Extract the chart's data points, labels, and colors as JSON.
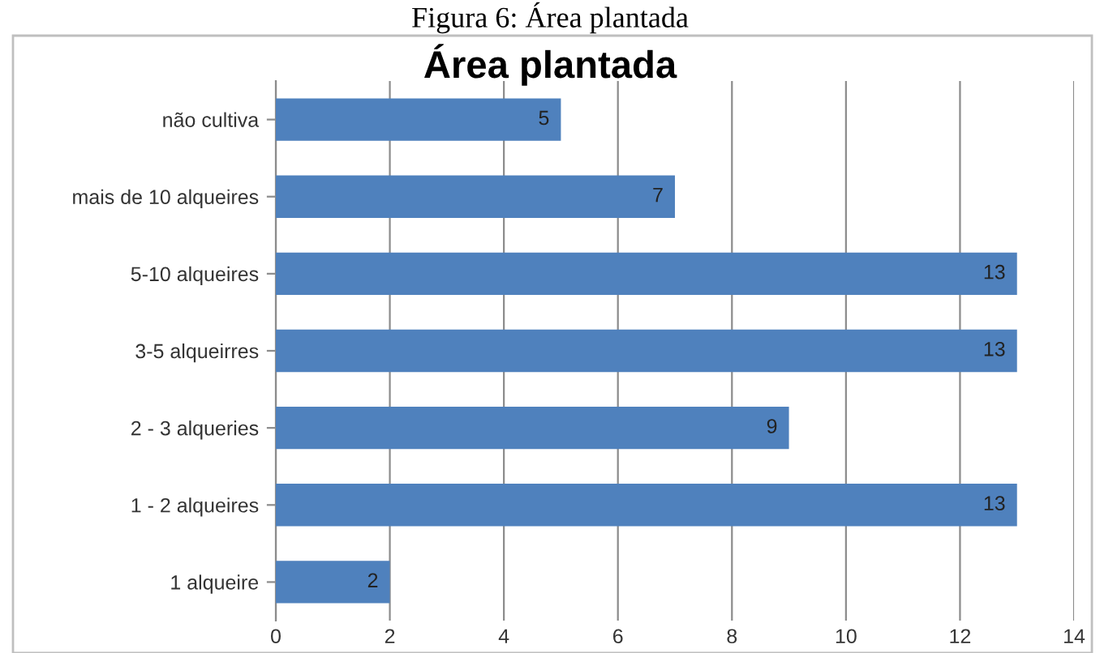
{
  "chart_data": {
    "type": "bar",
    "orientation": "horizontal",
    "title": "Área plantada",
    "annotations": [
      "Figura 6: Área plantada"
    ],
    "categories": [
      "não cultiva",
      "mais de 10 alqueires",
      "5-10 alqueires",
      "3-5 alqueirres",
      "2 - 3 alqueries",
      "1 - 2 alqueires",
      "1 alqueire"
    ],
    "values": [
      5,
      7,
      13,
      13,
      9,
      13,
      2
    ],
    "color": "#4f81bd",
    "xlim": [
      0,
      14
    ],
    "xticks": [
      0,
      2,
      4,
      6,
      8,
      10,
      12,
      14
    ],
    "grid": "x",
    "data_labels": true,
    "legend": false
  }
}
